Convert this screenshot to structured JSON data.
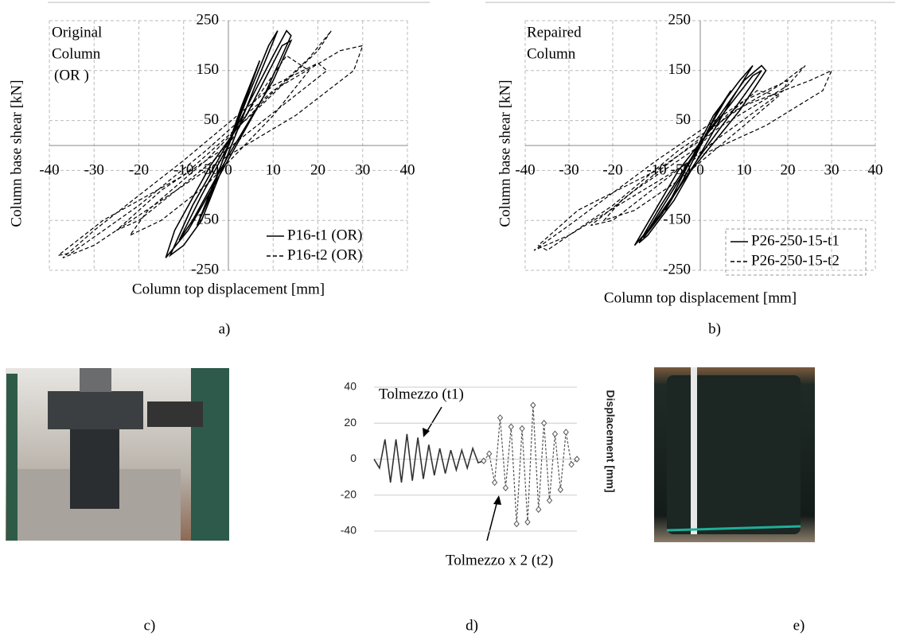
{
  "chart_data": [
    {
      "type": "line",
      "annotation": [
        "Original",
        "Column",
        "(OR )"
      ],
      "xlabel": "Column top displacement [mm]",
      "ylabel": "Column base shear [kN]",
      "xlim": [
        -40,
        40
      ],
      "xticks": [
        -40,
        -30,
        -20,
        -10,
        0,
        10,
        20,
        30,
        40
      ],
      "ylim": [
        -250,
        250
      ],
      "yticks": [
        -250,
        -150,
        -50,
        50,
        150,
        250
      ],
      "grid": true,
      "legend": "lower right",
      "series": [
        {
          "name": "P16-t1 (OR)",
          "color": "#000000",
          "dash": "solid",
          "x": [
            0,
            5,
            7,
            3,
            -4,
            -7,
            -3,
            4,
            9,
            11,
            6,
            -6,
            -10,
            -13,
            -8,
            2,
            10,
            13,
            14,
            8,
            -2,
            -9,
            -14,
            -12,
            -4,
            4,
            12,
            14,
            10,
            0,
            -8,
            -11,
            -6,
            0
          ],
          "values": [
            0,
            120,
            170,
            80,
            -100,
            -160,
            -70,
            90,
            200,
            230,
            120,
            -150,
            -200,
            -220,
            -120,
            40,
            180,
            230,
            220,
            100,
            -60,
            -170,
            -225,
            -170,
            -40,
            60,
            200,
            210,
            130,
            -20,
            -150,
            -190,
            -100,
            0
          ]
        },
        {
          "name": "P16-t2 (OR)",
          "color": "#000000",
          "dash": "dashed",
          "x": [
            0,
            6,
            13,
            18,
            10,
            -5,
            -15,
            -22,
            -18,
            -5,
            8,
            18,
            23,
            20,
            5,
            -10,
            -28,
            -38,
            -35,
            -20,
            -5,
            10,
            25,
            30,
            28,
            15,
            0,
            -15,
            -30,
            -37,
            -30,
            -10,
            10,
            20,
            22,
            5,
            -20,
            -25,
            -15,
            0
          ],
          "values": [
            0,
            90,
            180,
            150,
            60,
            -80,
            -150,
            -180,
            -130,
            -30,
            90,
            175,
            230,
            190,
            60,
            -60,
            -150,
            -220,
            -215,
            -120,
            -10,
            110,
            190,
            200,
            150,
            60,
            -20,
            -110,
            -200,
            -225,
            -170,
            -30,
            120,
            165,
            150,
            30,
            -150,
            -170,
            -90,
            0
          ]
        }
      ]
    },
    {
      "type": "line",
      "annotation": [
        "Repaired",
        "Column"
      ],
      "xlabel": "Column top displacement [mm]",
      "ylabel": "Column base shear [kN]",
      "xlim": [
        -40,
        40
      ],
      "xticks": [
        -40,
        -30,
        -20,
        -10,
        0,
        10,
        20,
        30,
        40
      ],
      "ylim": [
        -250,
        250
      ],
      "yticks": [
        -250,
        -150,
        -50,
        50,
        150,
        250
      ],
      "grid": true,
      "legend": "lower right",
      "series": [
        {
          "name": "P26-250-15-t1",
          "color": "#000000",
          "dash": "solid",
          "x": [
            0,
            4,
            7,
            3,
            -4,
            -8,
            -4,
            3,
            9,
            12,
            7,
            -6,
            -12,
            -14,
            -9,
            2,
            10,
            14,
            15,
            9,
            -3,
            -11,
            -15,
            -13,
            -5,
            4,
            12,
            14,
            10,
            0,
            -9,
            -13,
            -7,
            0
          ],
          "values": [
            0,
            70,
            110,
            50,
            -70,
            -130,
            -60,
            60,
            130,
            160,
            90,
            -110,
            -180,
            -195,
            -120,
            30,
            130,
            160,
            150,
            70,
            -60,
            -160,
            -200,
            -170,
            -50,
            50,
            140,
            150,
            100,
            -20,
            -140,
            -185,
            -100,
            0
          ]
        },
        {
          "name": "P26-250-15-t2",
          "color": "#000000",
          "dash": "dashed",
          "x": [
            0,
            6,
            13,
            18,
            10,
            -5,
            -15,
            -22,
            -18,
            -5,
            8,
            18,
            24,
            20,
            5,
            -10,
            -28,
            -37,
            -35,
            -20,
            -5,
            10,
            25,
            30,
            28,
            15,
            0,
            -15,
            -30,
            -38,
            -30,
            -10,
            10,
            20,
            19,
            5,
            -20,
            -25,
            -15,
            0
          ],
          "values": [
            0,
            60,
            110,
            100,
            40,
            -70,
            -130,
            -150,
            -110,
            -20,
            70,
            120,
            160,
            120,
            40,
            -50,
            -130,
            -200,
            -210,
            -120,
            -10,
            80,
            130,
            150,
            110,
            40,
            -20,
            -100,
            -180,
            -210,
            -160,
            -30,
            90,
            130,
            110,
            20,
            -150,
            -160,
            -90,
            0
          ]
        }
      ]
    },
    {
      "type": "line",
      "annotation": [
        "Tolmezzo (t1)",
        "Tolmezzo x 2 (t2)"
      ],
      "ylabel": "Displacement [mm]",
      "x": [
        0,
        1,
        2,
        3,
        4,
        5,
        6,
        7,
        8,
        9,
        10,
        11,
        12,
        13,
        14,
        15,
        16,
        17,
        18,
        19,
        20,
        21,
        22,
        23,
        24,
        25,
        26,
        27,
        28,
        29,
        30,
        31,
        32,
        33,
        34,
        35,
        36,
        37
      ],
      "xlim": [
        0,
        37
      ],
      "ylim": [
        -40,
        40
      ],
      "yticks": [
        -40,
        -20,
        0,
        20,
        40
      ],
      "grid": true,
      "series": [
        {
          "name": "Tolmezzo (t1)",
          "color": "#333333",
          "dash": "solid",
          "values": [
            0,
            -5,
            11,
            -13,
            11,
            -13,
            14,
            -12,
            12,
            -11,
            8,
            -9,
            6,
            -8,
            5,
            -6,
            5,
            -5,
            6,
            -2,
            -1,
            null,
            null,
            null,
            null,
            null,
            null,
            null,
            null,
            null,
            null,
            null,
            null,
            null,
            null,
            null,
            null,
            null
          ]
        },
        {
          "name": "Tolmezzo x 2 (t2)",
          "color": "#555555",
          "dash": "dotted",
          "values": [
            null,
            null,
            null,
            null,
            null,
            null,
            null,
            null,
            null,
            null,
            null,
            null,
            null,
            null,
            null,
            null,
            null,
            null,
            null,
            null,
            -1,
            3,
            -13,
            23,
            -16,
            18,
            -36,
            17,
            -35,
            30,
            -28,
            20,
            -23,
            14,
            -17,
            15,
            -3,
            0
          ]
        }
      ]
    }
  ],
  "panel_labels": [
    "a)",
    "b)",
    "c)",
    "d)",
    "e)"
  ]
}
